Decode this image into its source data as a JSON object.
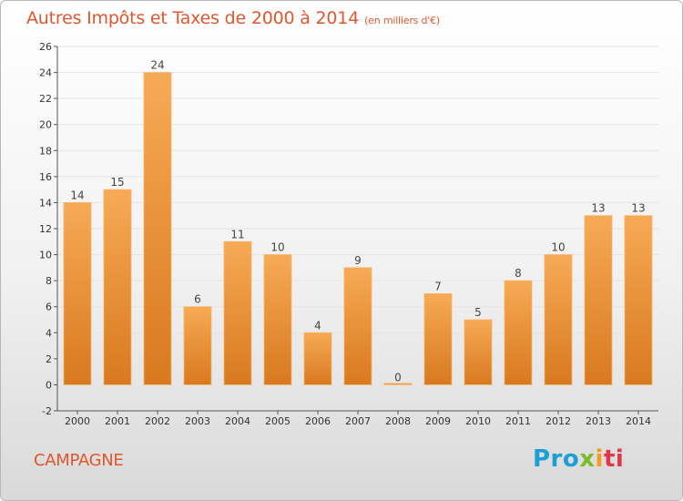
{
  "header": {
    "title": "Autres Impôts et Taxes de 2000 à 2014",
    "unit": "(en milliers d'€)"
  },
  "footer": {
    "commune": "CAMPAGNE",
    "logo": [
      "Pro",
      "x",
      "i",
      "ti"
    ]
  },
  "colors": {
    "title": "#e0572e",
    "bar_light": "#f5a650",
    "bar_dark": "#d97a1f",
    "grid": "#e5e5e5"
  },
  "chart_data": {
    "type": "bar",
    "title": "Autres Impôts et Taxes de 2000 à 2014",
    "unit": "(en milliers d'€)",
    "categories": [
      "2000",
      "2001",
      "2002",
      "2003",
      "2004",
      "2005",
      "2006",
      "2007",
      "2008",
      "2009",
      "2010",
      "2011",
      "2012",
      "2013",
      "2014"
    ],
    "values": [
      14,
      15,
      24,
      6,
      11,
      10,
      4,
      9,
      0,
      7,
      5,
      8,
      10,
      13,
      13
    ],
    "ylim": [
      -2,
      26
    ],
    "yticks": [
      -2,
      0,
      2,
      4,
      6,
      8,
      10,
      12,
      14,
      16,
      18,
      20,
      22,
      24,
      26
    ],
    "grid": true,
    "legend": "none"
  }
}
